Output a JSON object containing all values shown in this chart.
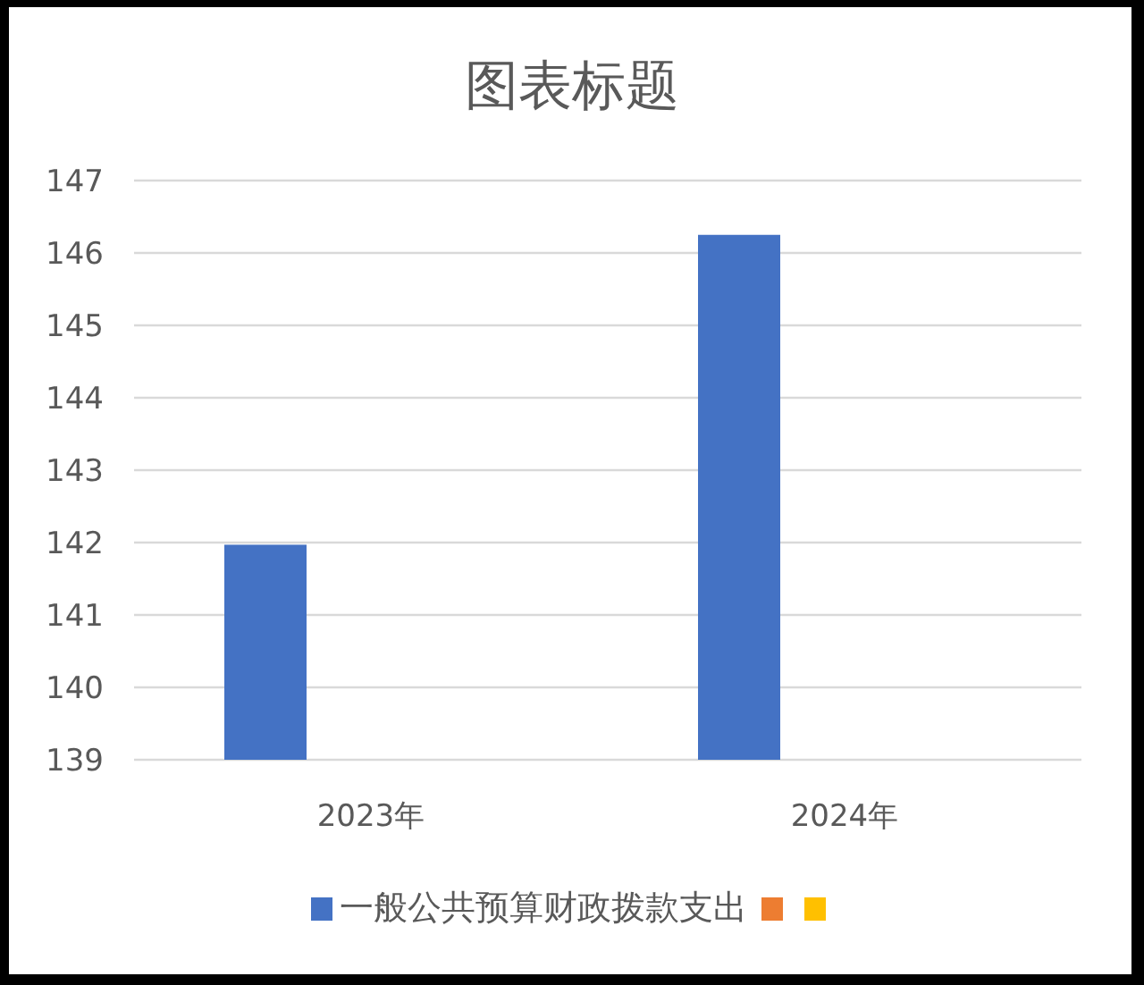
{
  "chart_data": {
    "type": "bar",
    "title": "图表标题",
    "categories": [
      "2023年",
      "2024年"
    ],
    "series": [
      {
        "name": "一般公共预算财政拨款支出",
        "color": "#4472c4",
        "values": [
          141.97,
          146.25
        ]
      },
      {
        "color": "#ed7d31",
        "values": [
          null,
          null
        ]
      },
      {
        "color": "#ffc000",
        "values": [
          null,
          null
        ]
      }
    ],
    "ylim": [
      139,
      147
    ],
    "yticks": [
      139,
      140,
      141,
      142,
      143,
      144,
      145,
      146,
      147
    ],
    "grid": "y",
    "legend": "bottom"
  }
}
